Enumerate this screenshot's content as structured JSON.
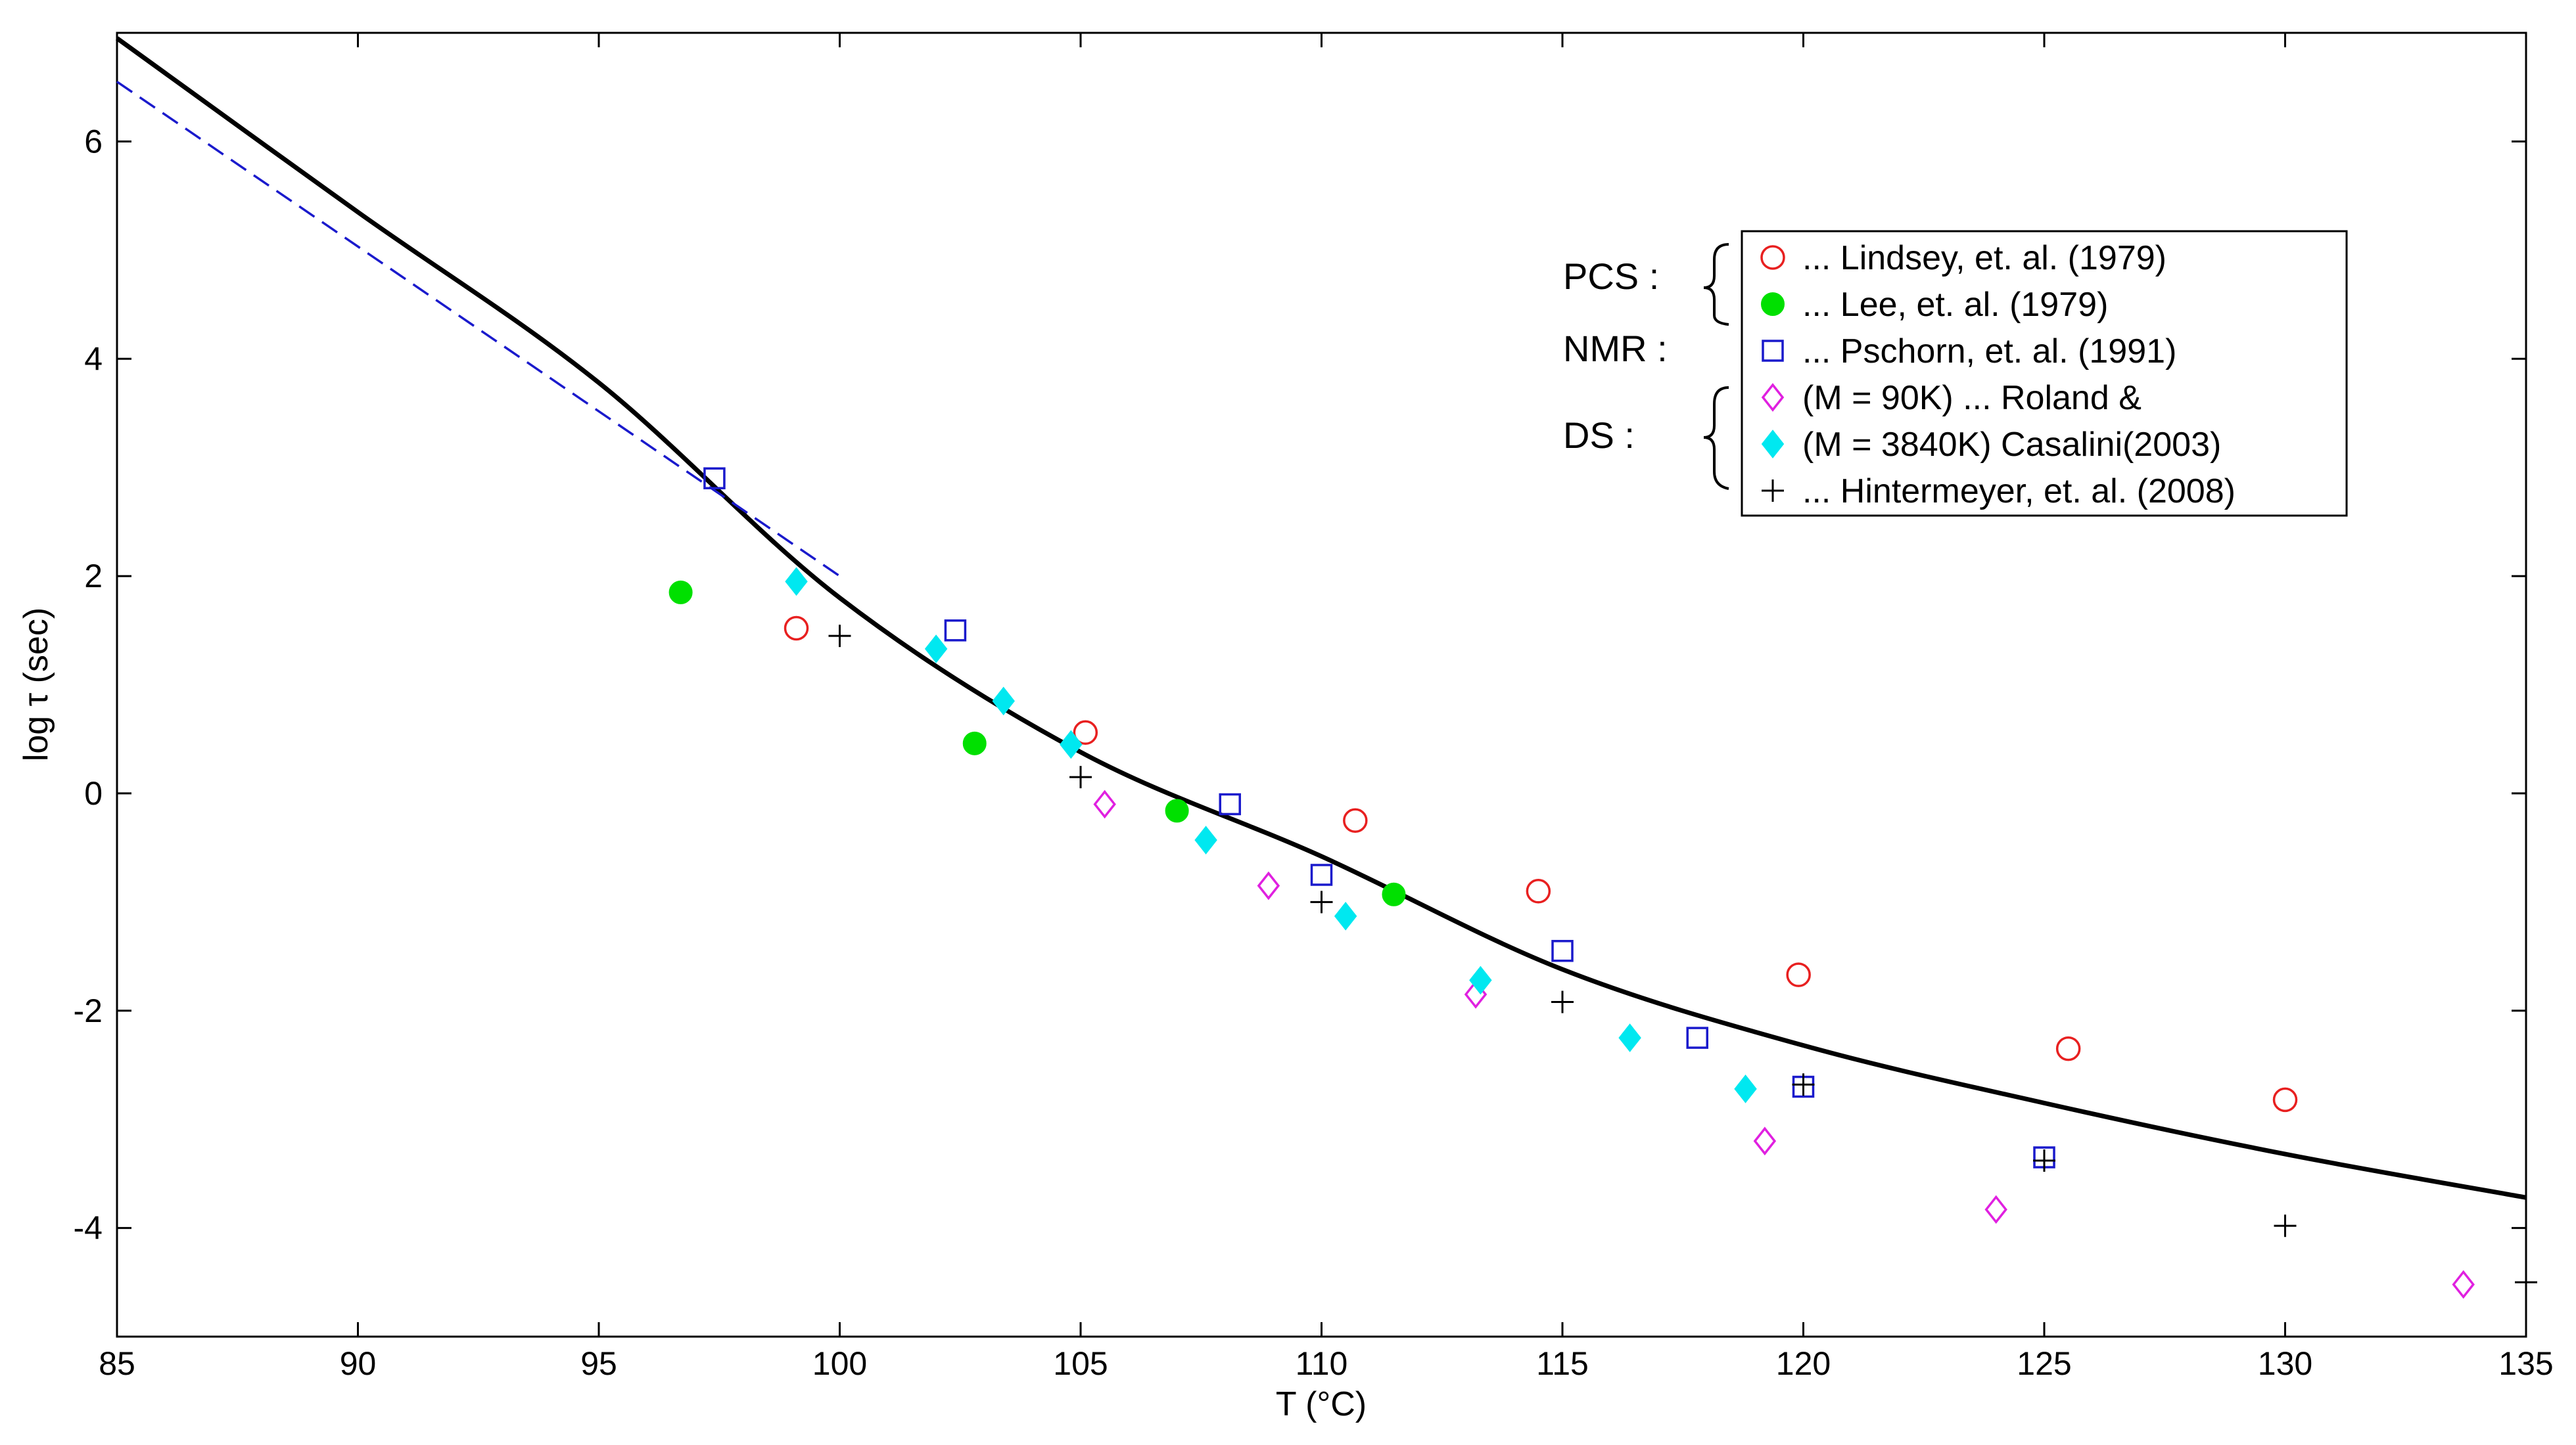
{
  "chart_data": {
    "type": "scatter",
    "xlabel": "T (°C)",
    "ylabel": "log τ (sec)",
    "xlim": [
      85,
      135
    ],
    "ylim": [
      -5,
      7
    ],
    "xticks": [
      85,
      90,
      95,
      100,
      105,
      110,
      115,
      120,
      125,
      130,
      135
    ],
    "yticks": [
      -4,
      -2,
      0,
      2,
      4,
      6
    ],
    "colors": {
      "lindsey": "#e82020",
      "lee": "#00e000",
      "pschorn": "#1a1acc",
      "roland90k": "#e020e0",
      "roland3840k": "#00e8f0",
      "hintermeyer": "#000000",
      "fit": "#000000",
      "dashed": "#1a1acc"
    },
    "legend": {
      "groups": [
        "PCS :",
        "NMR :",
        "DS :"
      ],
      "entries": [
        {
          "key": "lindsey",
          "label": "... Lindsey, et. al. (1979)"
        },
        {
          "key": "lee",
          "label": "... Lee, et. al. (1979)"
        },
        {
          "key": "pschorn",
          "label": "... Pschorn, et. al. (1991)"
        },
        {
          "key": "roland90k",
          "label": "(M   = 90K)    ... Roland &"
        },
        {
          "key": "roland3840k",
          "label": "(M   = 3840K)    Casalini(2003)"
        },
        {
          "key": "hintermeyer",
          "label": "... Hintermeyer, et. al. (2008)"
        }
      ]
    },
    "series": [
      {
        "name": "Lindsey, et. al. (1979)",
        "key": "lindsey",
        "marker": "circle-open",
        "x": [
          99.1,
          105.1,
          110.7,
          114.5,
          119.9,
          125.5,
          130.0
        ],
        "y": [
          1.52,
          0.56,
          -0.25,
          -0.9,
          -1.67,
          -2.35,
          -2.82
        ]
      },
      {
        "name": "Lee, et. al. (1979)",
        "key": "lee",
        "marker": "circle-filled",
        "x": [
          96.7,
          102.8,
          107.0,
          111.5
        ],
        "y": [
          1.85,
          0.46,
          -0.16,
          -0.93
        ]
      },
      {
        "name": "Pschorn, et. al. (1991)",
        "key": "pschorn",
        "marker": "square-open",
        "x": [
          97.4,
          102.4,
          108.1,
          110.0,
          115.0,
          117.8,
          120.0,
          125.0
        ],
        "y": [
          2.9,
          1.5,
          -0.1,
          -0.75,
          -1.45,
          -2.25,
          -2.7,
          -3.35
        ]
      },
      {
        "name": "Roland & Casalini (2003), M = 90K",
        "key": "roland90k",
        "marker": "diamond-open",
        "x": [
          105.5,
          108.9,
          113.2,
          119.2,
          124.0,
          133.7
        ],
        "y": [
          -0.1,
          -0.85,
          -1.85,
          -3.2,
          -3.83,
          -4.52
        ]
      },
      {
        "name": "Roland & Casalini (2003), M = 3840K",
        "key": "roland3840k",
        "marker": "diamond-filled",
        "x": [
          99.1,
          102.0,
          103.4,
          104.8,
          107.6,
          110.5,
          113.3,
          116.4,
          118.8
        ],
        "y": [
          1.95,
          1.33,
          0.85,
          0.45,
          -0.43,
          -1.13,
          -1.72,
          -2.25,
          -2.72
        ]
      },
      {
        "name": "Hintermeyer, et. al. (2008)",
        "key": "hintermeyer",
        "marker": "plus",
        "x": [
          100.0,
          105.0,
          110.0,
          115.0,
          120.0,
          125.0,
          130.0,
          135.0
        ],
        "y": [
          1.45,
          0.15,
          -1.0,
          -1.92,
          -2.68,
          -3.38,
          -3.98,
          -4.5
        ]
      }
    ],
    "fit_curve": {
      "name": "fit",
      "style": "solid",
      "x": [
        85,
        90,
        95,
        100,
        105,
        110,
        115,
        120,
        125,
        130,
        135
      ],
      "y": [
        6.95,
        5.35,
        3.78,
        1.8,
        0.38,
        -0.58,
        -1.62,
        -2.32,
        -2.85,
        -3.32,
        -3.72
      ]
    },
    "dashed_line": {
      "name": "dashed",
      "style": "dashed",
      "x": [
        85,
        100
      ],
      "y": [
        6.55,
        2.0
      ]
    }
  }
}
